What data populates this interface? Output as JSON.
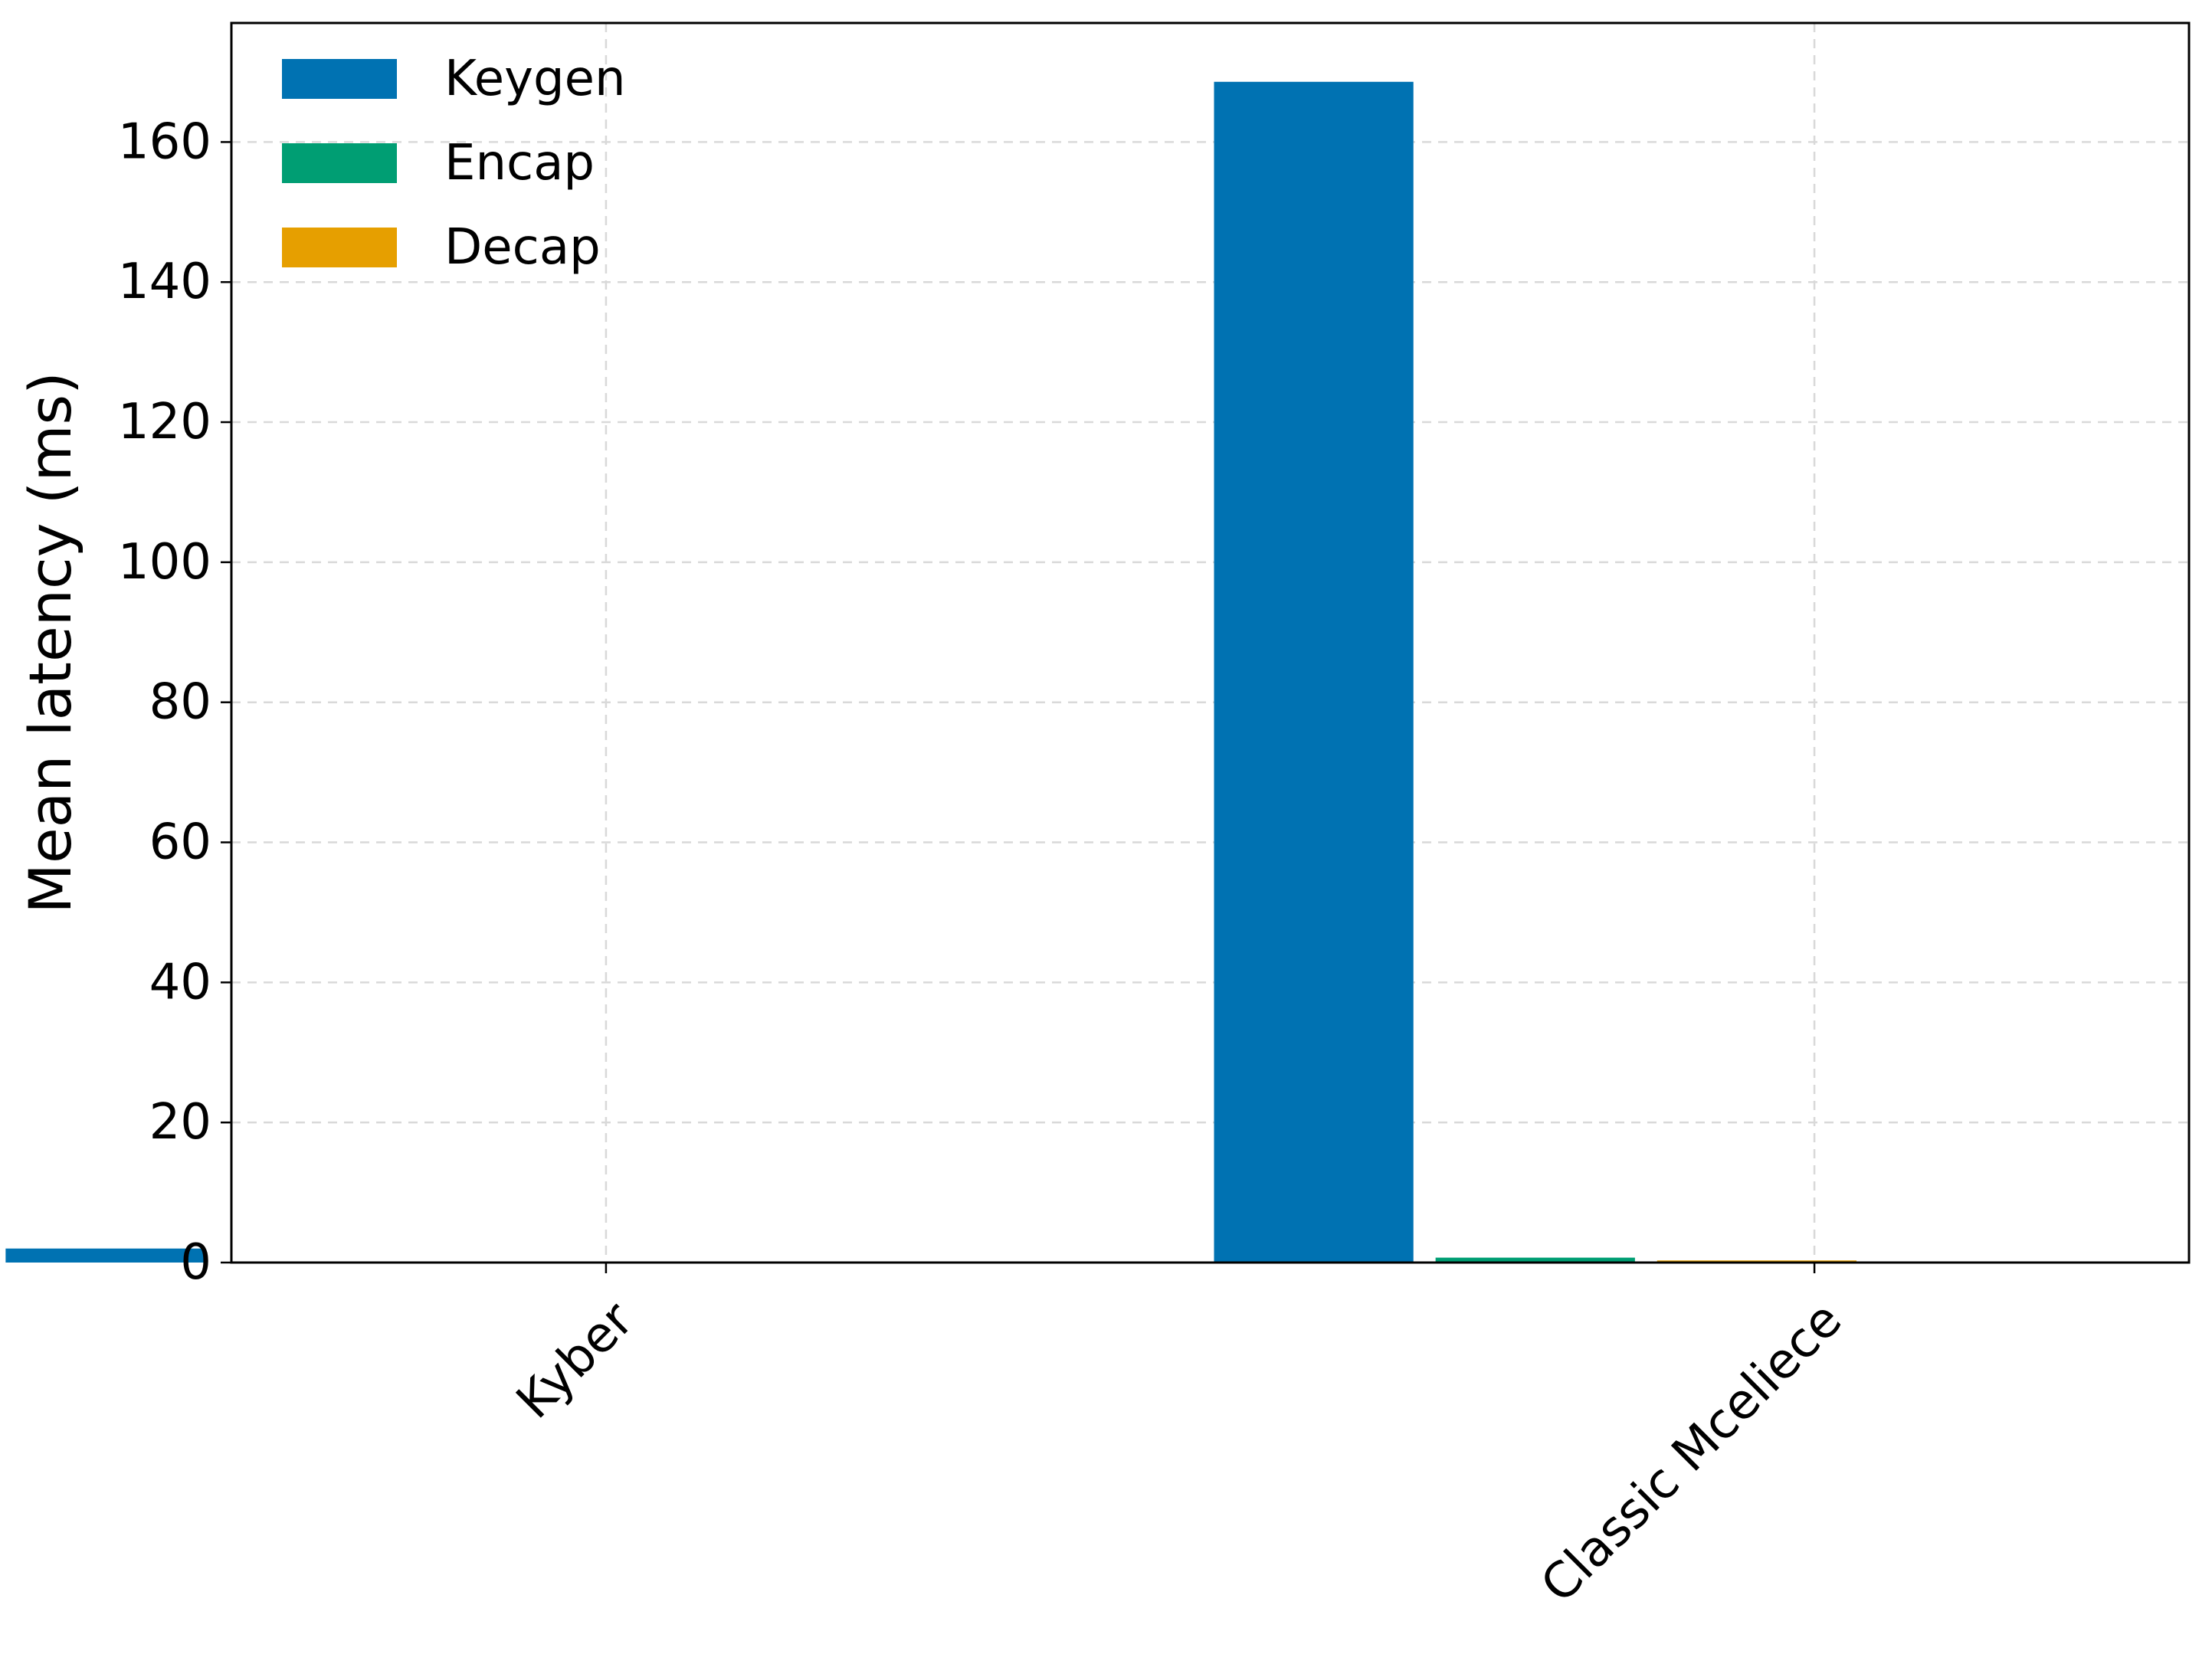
{
  "chart_data": {
    "type": "bar",
    "categories": [
      "Kyber",
      "Classic Mceliece"
    ],
    "series": [
      {
        "name": "Keygen",
        "color": "#0072B2",
        "values": [
          2.0,
          168.6
        ]
      },
      {
        "name": "Encap",
        "color": "#009E73",
        "values": [
          0.05,
          0.7
        ]
      },
      {
        "name": "Decap",
        "color": "#E69F00",
        "values": [
          0.05,
          0.3
        ]
      }
    ],
    "title": "",
    "xlabel": "",
    "ylabel": "Mean latency (ms)",
    "ylim": [
      0,
      177
    ],
    "yticks": [
      0,
      20,
      40,
      60,
      80,
      100,
      120,
      140,
      160
    ],
    "ytick_labels": [
      "0",
      "20",
      "40",
      "60",
      "80",
      "100",
      "120",
      "140",
      "160"
    ],
    "grid": true,
    "legend_position": "top-left",
    "xtick_rotation": 45
  }
}
